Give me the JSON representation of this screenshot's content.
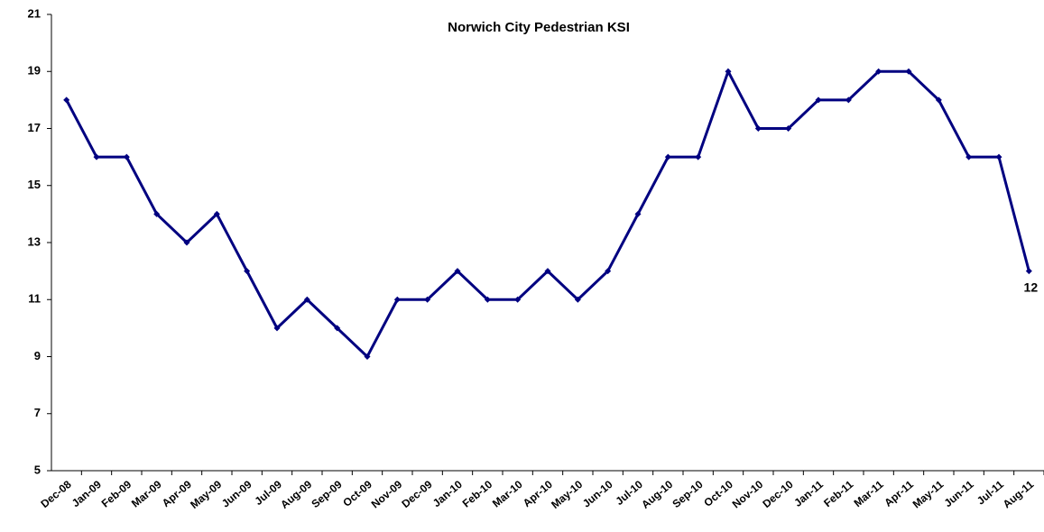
{
  "chart_data": {
    "type": "line",
    "title": "Norwich City Pedestrian KSI",
    "categories": [
      "Dec-08",
      "Jan-09",
      "Feb-09",
      "Mar-09",
      "Apr-09",
      "May-09",
      "Jun-09",
      "Jul-09",
      "Aug-09",
      "Sep-09",
      "Oct-09",
      "Nov-09",
      "Dec-09",
      "Jan-10",
      "Feb-10",
      "Mar-10",
      "Apr-10",
      "May-10",
      "Jun-10",
      "Jul-10",
      "Aug-10",
      "Sep-10",
      "Oct-10",
      "Nov-10",
      "Dec-10",
      "Jan-11",
      "Feb-11",
      "Mar-11",
      "Apr-11",
      "May-11",
      "Jun-11",
      "Jul-11",
      "Aug-11"
    ],
    "values": [
      18,
      16,
      16,
      14,
      13,
      14,
      12,
      10,
      11,
      10,
      9,
      11,
      11,
      12,
      11,
      11,
      12,
      11,
      12,
      14,
      16,
      16,
      19,
      17,
      17,
      18,
      18,
      19,
      19,
      18,
      16,
      16,
      12
    ],
    "color": "#000080",
    "ylim": [
      5,
      21
    ],
    "yticks": [
      5,
      7,
      9,
      11,
      13,
      15,
      17,
      19,
      21
    ],
    "grid": false
  }
}
